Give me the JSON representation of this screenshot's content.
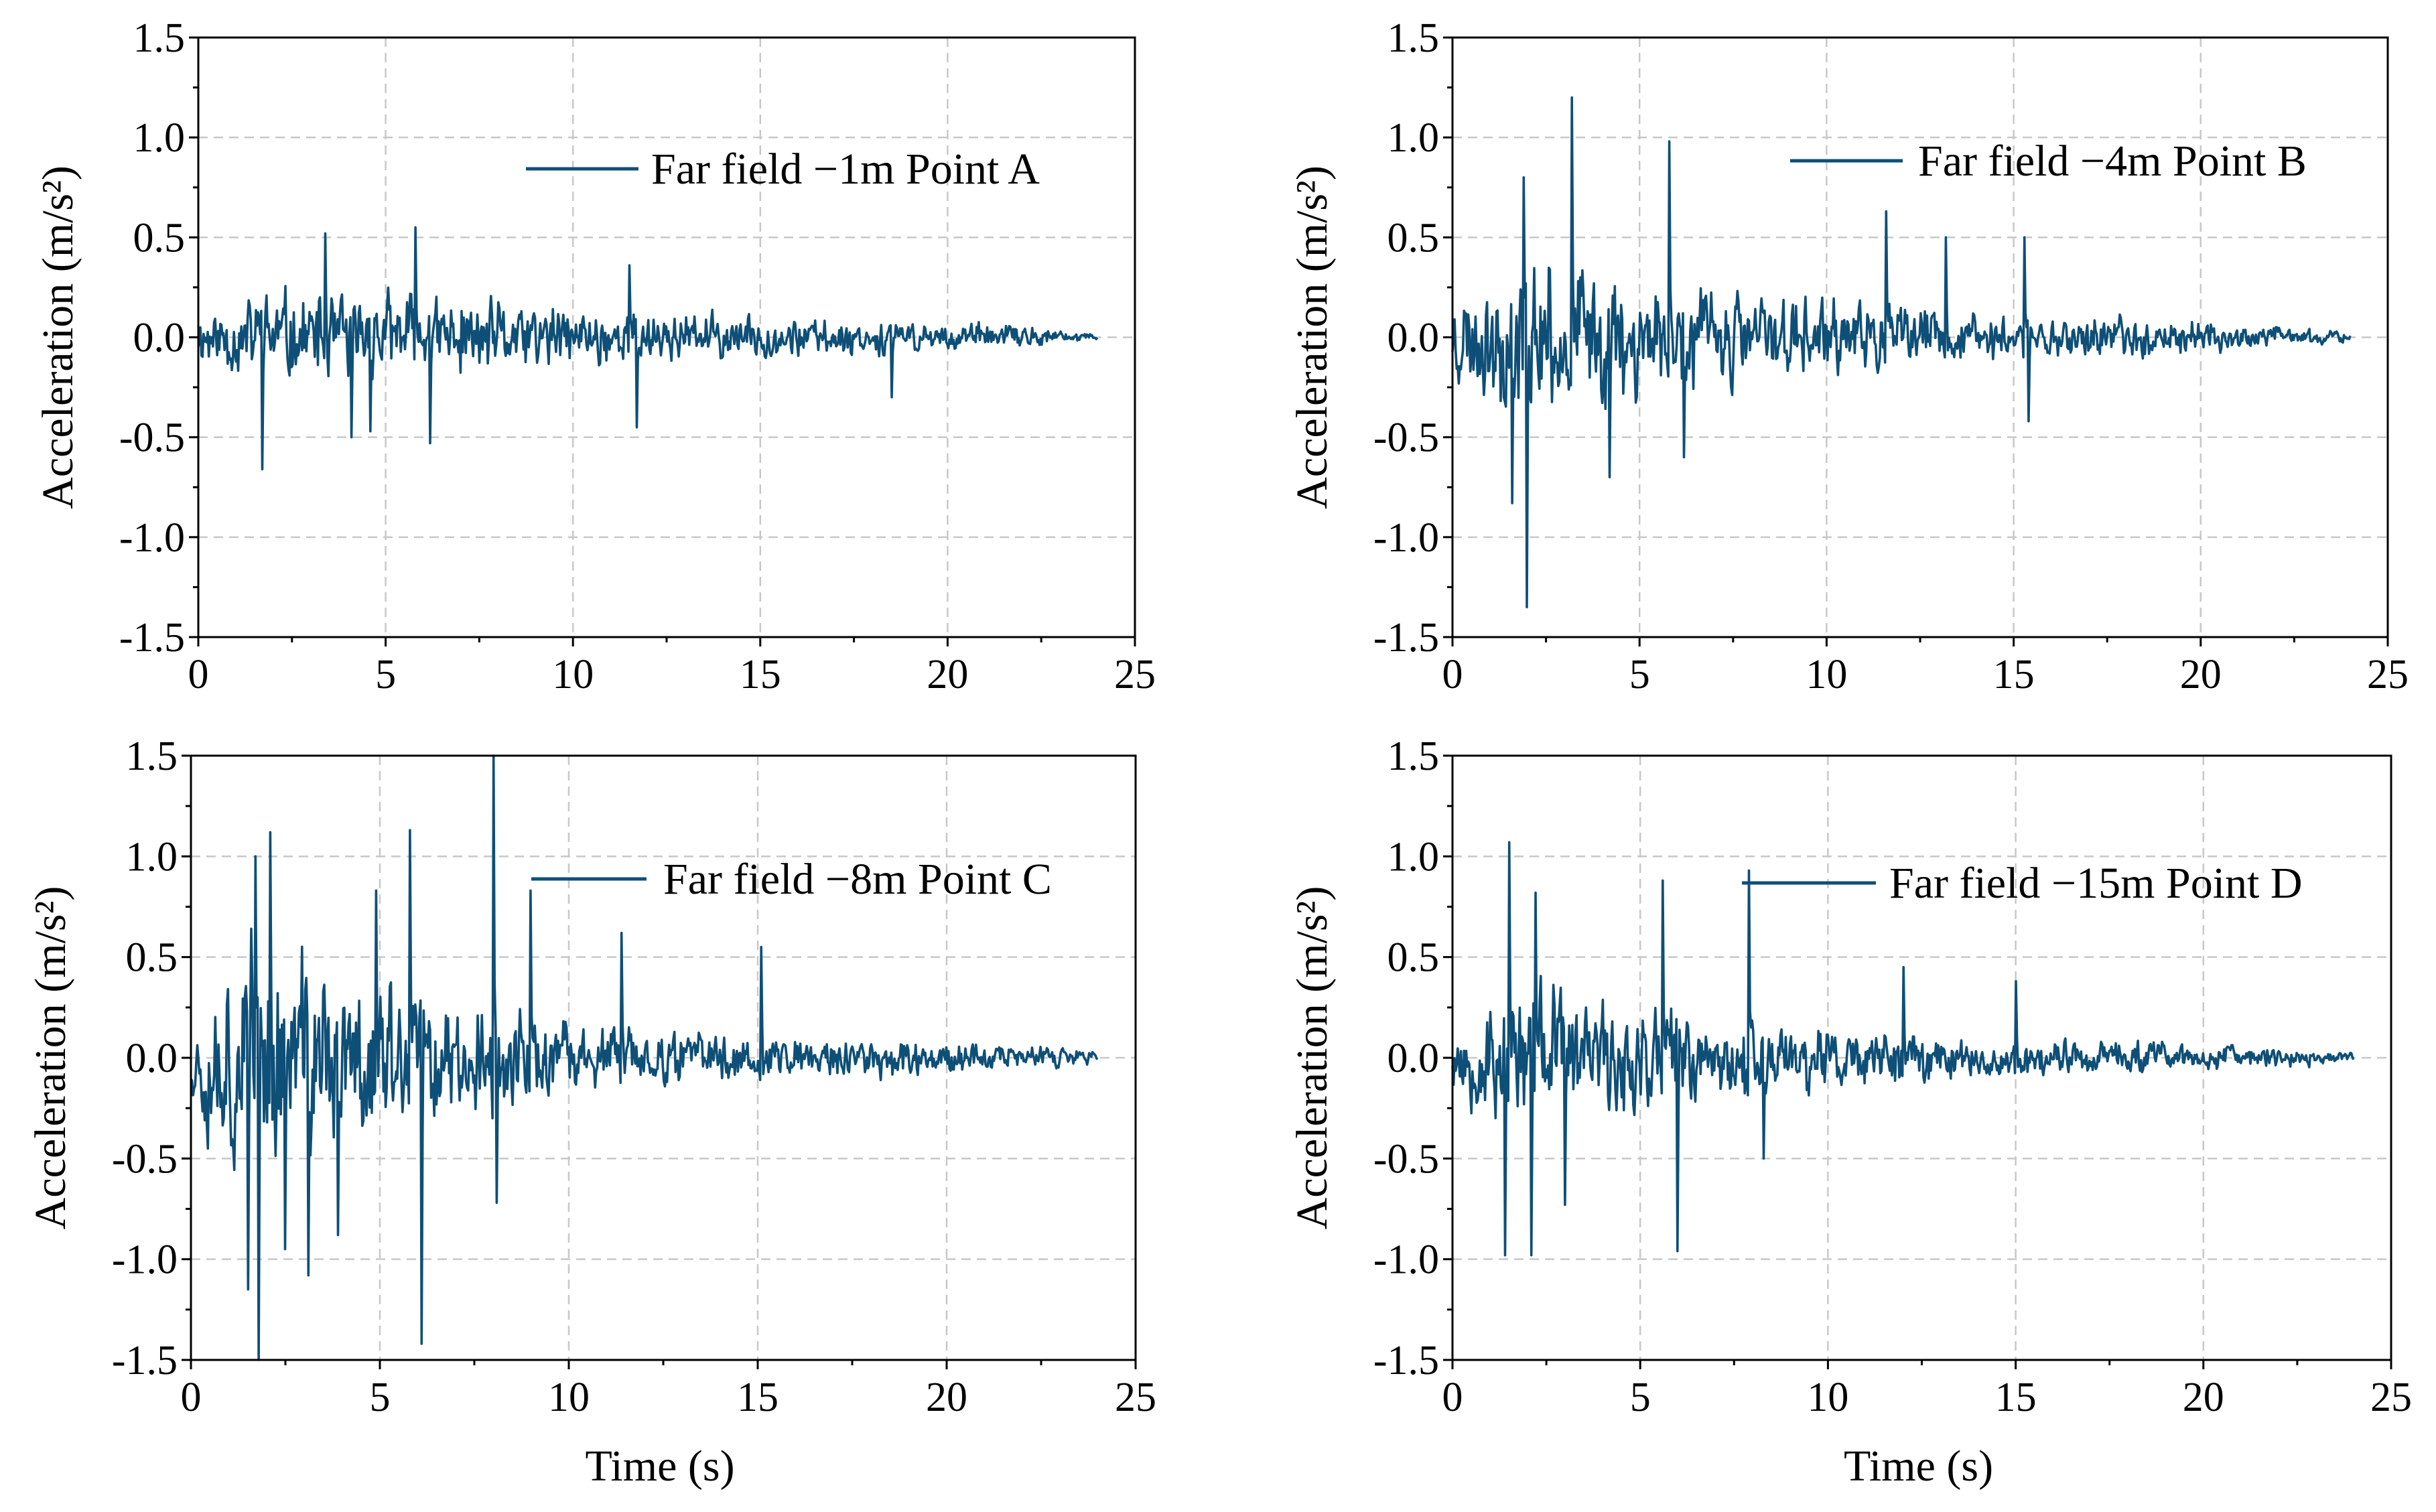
{
  "colors": {
    "series": "#0e4f77",
    "grid": "#c8c8c8",
    "axis": "#000000"
  },
  "chart_data": [
    {
      "type": "line",
      "panel": "top-left",
      "legend": "Far field −1m Point A",
      "legend_position": "top-right",
      "xlabel": "",
      "ylabel": "Acceleration (m/s²)",
      "xlim": [
        0,
        25
      ],
      "ylim": [
        -1.5,
        1.5
      ],
      "xticks": [
        "0",
        "5",
        "10",
        "15",
        "20",
        "25"
      ],
      "yticks": [
        "-1.5",
        "-1.0",
        "-0.5",
        "0.0",
        "0.5",
        "1.0",
        "1.5"
      ],
      "grid": true,
      "duration": 24,
      "envelope": [
        [
          0,
          0.2
        ],
        [
          2,
          0.32
        ],
        [
          6,
          0.28
        ],
        [
          10,
          0.2
        ],
        [
          14,
          0.15
        ],
        [
          18,
          0.11
        ],
        [
          22,
          0.08
        ],
        [
          24,
          0.02
        ]
      ],
      "peaks": [
        [
          1.7,
          -0.66
        ],
        [
          3.4,
          0.52
        ],
        [
          4.1,
          -0.5
        ],
        [
          4.6,
          -0.47
        ],
        [
          5.8,
          0.55
        ],
        [
          6.2,
          -0.53
        ],
        [
          11.7,
          -0.45
        ],
        [
          11.5,
          0.36
        ],
        [
          18.5,
          -0.3
        ]
      ],
      "seed": 11
    },
    {
      "type": "line",
      "panel": "top-right",
      "legend": "Far field −4m Point B",
      "legend_position": "top-right",
      "xlabel": "",
      "ylabel": "Acceleration (m/s²)",
      "xlim": [
        0,
        25
      ],
      "ylim": [
        -1.5,
        1.5
      ],
      "xticks": [
        "0",
        "5",
        "10",
        "15",
        "20",
        "25"
      ],
      "yticks": [
        "-1.5",
        "-1.0",
        "-0.5",
        "0.0",
        "0.5",
        "1.0",
        "1.5"
      ],
      "grid": true,
      "duration": 24,
      "envelope": [
        [
          0,
          0.3
        ],
        [
          2,
          0.55
        ],
        [
          4,
          0.45
        ],
        [
          8,
          0.3
        ],
        [
          12,
          0.2
        ],
        [
          16,
          0.15
        ],
        [
          20,
          0.12
        ],
        [
          24,
          0.03
        ]
      ],
      "peaks": [
        [
          1.6,
          -0.83
        ],
        [
          1.9,
          0.8
        ],
        [
          2.0,
          -1.35
        ],
        [
          3.2,
          1.2
        ],
        [
          4.2,
          -0.7
        ],
        [
          5.8,
          0.98
        ],
        [
          6.2,
          -0.6
        ],
        [
          11.6,
          0.63
        ],
        [
          13.2,
          0.5
        ],
        [
          15.3,
          0.5
        ],
        [
          15.4,
          -0.42
        ]
      ],
      "seed": 23
    },
    {
      "type": "line",
      "panel": "bottom-left",
      "legend": "Far field −8m Point C",
      "legend_position": "top-right",
      "xlabel": "Time (s)",
      "ylabel": "Acceleration (m/s²)",
      "xlim": [
        0,
        25
      ],
      "ylim": [
        -1.5,
        1.5
      ],
      "xticks": [
        "0",
        "5",
        "10",
        "15",
        "20",
        "25"
      ],
      "yticks": [
        "-1.5",
        "-1.0",
        "-0.5",
        "0.0",
        "0.5",
        "1.0",
        "1.5"
      ],
      "grid": true,
      "duration": 24,
      "envelope": [
        [
          0,
          0.35
        ],
        [
          1.5,
          0.85
        ],
        [
          3,
          0.7
        ],
        [
          6,
          0.45
        ],
        [
          9,
          0.28
        ],
        [
          12,
          0.18
        ],
        [
          16,
          0.14
        ],
        [
          20,
          0.13
        ],
        [
          24,
          0.04
        ]
      ],
      "peaks": [
        [
          1.5,
          -1.15
        ],
        [
          1.7,
          1.0
        ],
        [
          1.8,
          -1.5
        ],
        [
          2.1,
          1.12
        ],
        [
          2.5,
          -0.95
        ],
        [
          3.1,
          -1.08
        ],
        [
          3.9,
          -0.88
        ],
        [
          4.9,
          0.83
        ],
        [
          5.8,
          1.13
        ],
        [
          6.1,
          -1.42
        ],
        [
          8.0,
          1.5
        ],
        [
          8.1,
          -0.72
        ],
        [
          9.0,
          0.83
        ],
        [
          11.4,
          0.62
        ],
        [
          15.1,
          0.55
        ]
      ],
      "seed": 37
    },
    {
      "type": "line",
      "panel": "bottom-right",
      "legend": "Far field −15m Point D",
      "legend_position": "top-right",
      "xlabel": "Time (s)",
      "ylabel": "Acceleration (m/s²)",
      "xlim": [
        0,
        25
      ],
      "ylim": [
        -1.5,
        1.5
      ],
      "xticks": [
        "0",
        "5",
        "10",
        "15",
        "20",
        "25"
      ],
      "yticks": [
        "-1.5",
        "-1.0",
        "-0.5",
        "0.0",
        "0.5",
        "1.0",
        "1.5"
      ],
      "grid": true,
      "duration": 24,
      "envelope": [
        [
          0,
          0.25
        ],
        [
          1.5,
          0.5
        ],
        [
          4,
          0.38
        ],
        [
          8,
          0.28
        ],
        [
          12,
          0.18
        ],
        [
          16,
          0.12
        ],
        [
          20,
          0.1
        ],
        [
          24,
          0.03
        ]
      ],
      "peaks": [
        [
          1.5,
          1.07
        ],
        [
          1.4,
          -0.98
        ],
        [
          2.1,
          -0.98
        ],
        [
          2.2,
          0.82
        ],
        [
          3.0,
          -0.73
        ],
        [
          5.6,
          0.88
        ],
        [
          6.0,
          -0.96
        ],
        [
          7.9,
          0.93
        ],
        [
          8.3,
          -0.5
        ],
        [
          12.0,
          0.45
        ],
        [
          15.0,
          0.38
        ]
      ],
      "seed": 53
    }
  ]
}
